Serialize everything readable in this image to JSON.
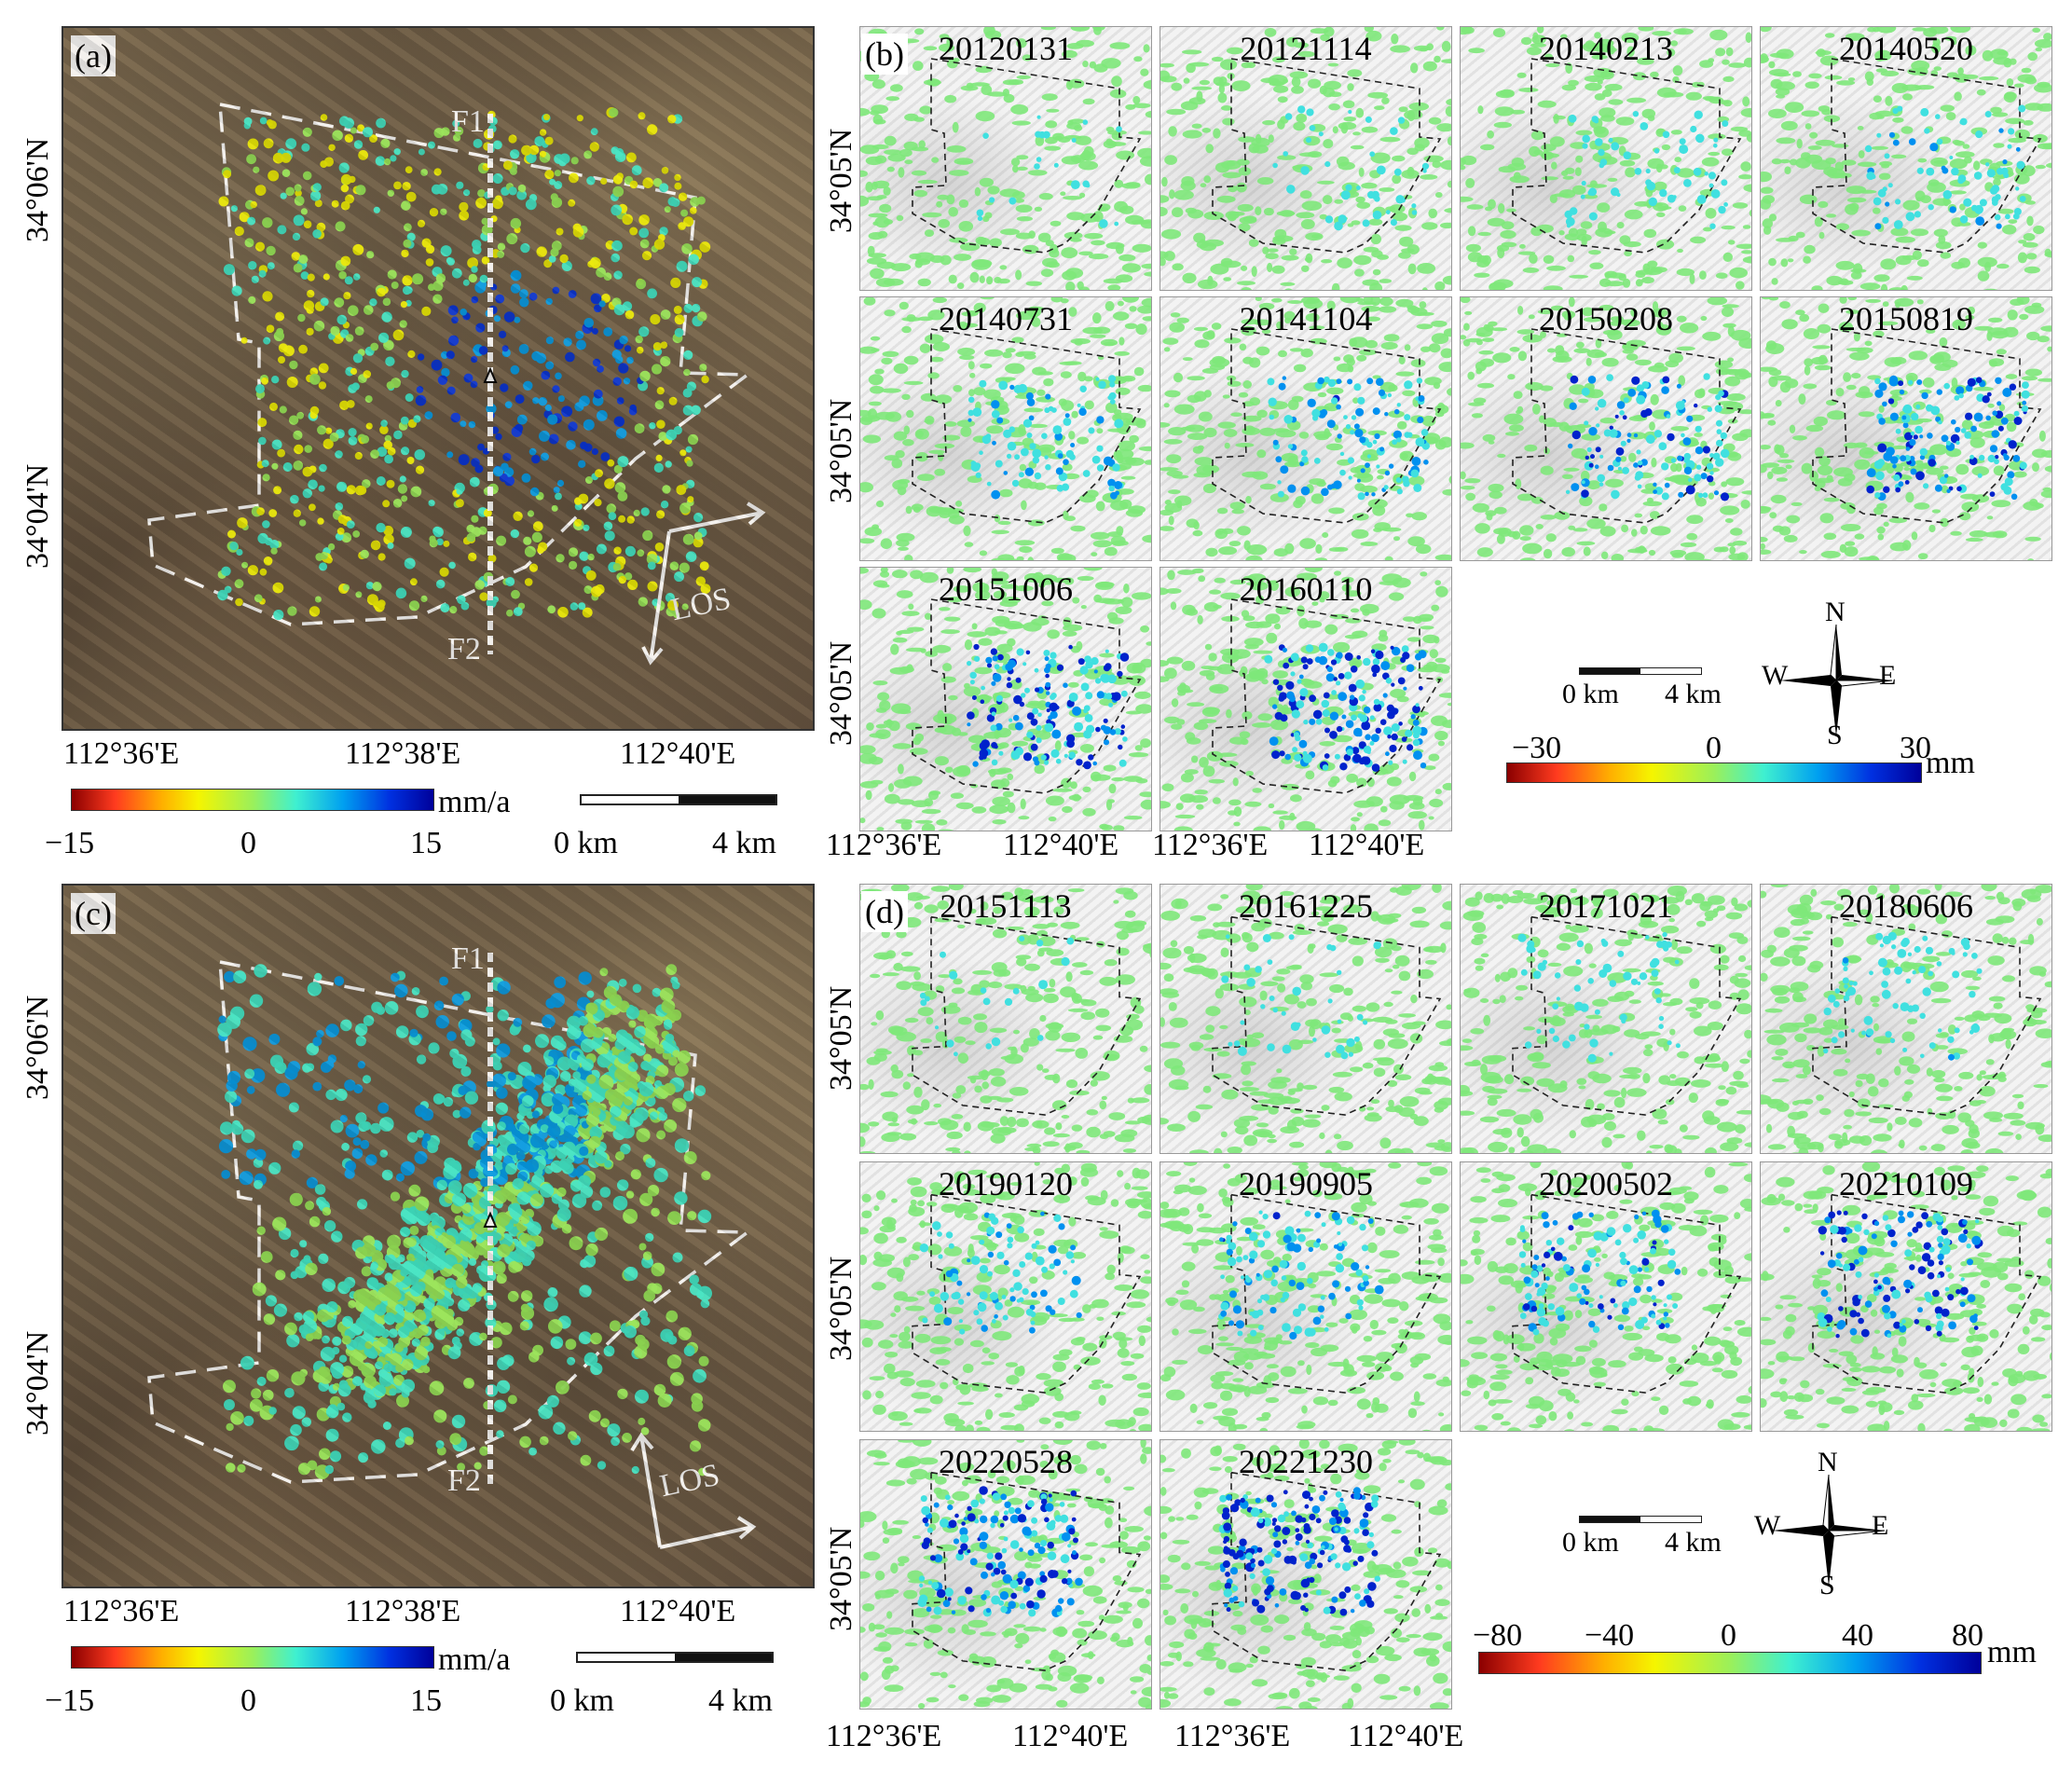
{
  "panels": {
    "a": {
      "label": "(a)",
      "profile_top": "F1",
      "profile_bottom": "F2",
      "los": "LOS",
      "lat_ticks": [
        "34°06'N",
        "34°04'N"
      ],
      "lon_ticks": [
        "112°36'E",
        "112°38'E",
        "112°40'E"
      ],
      "colorbar": {
        "unit": "mm/a",
        "ticks": [
          "−15",
          "0",
          "15"
        ]
      },
      "scale": {
        "left": "0 km",
        "right": "4 km"
      }
    },
    "b": {
      "label": "(b)",
      "dates": [
        "20120131",
        "20121114",
        "20140213",
        "20140520",
        "20140731",
        "20141104",
        "20150208",
        "20150819",
        "20151006",
        "20160110"
      ],
      "lat_tick": "34°05'N",
      "lon_ticks": [
        "112°36'E",
        "112°40'E"
      ],
      "colorbar": {
        "unit": "mm",
        "ticks": [
          "−30",
          "0",
          "30"
        ]
      },
      "scale": {
        "left": "0 km",
        "right": "4 km"
      },
      "compass": {
        "n": "N",
        "s": "S",
        "e": "E",
        "w": "W"
      }
    },
    "c": {
      "label": "(c)",
      "profile_top": "F1",
      "profile_bottom": "F2",
      "los": "LOS",
      "lat_ticks": [
        "34°06'N",
        "34°04'N"
      ],
      "lon_ticks": [
        "112°36'E",
        "112°38'E",
        "112°40'E"
      ],
      "colorbar": {
        "unit": "mm/a",
        "ticks": [
          "−15",
          "0",
          "15"
        ]
      },
      "scale": {
        "left": "0 km",
        "right": "4 km"
      }
    },
    "d": {
      "label": "(d)",
      "dates": [
        "20151113",
        "20161225",
        "20171021",
        "20180606",
        "20190120",
        "20190905",
        "20200502",
        "20210109",
        "20220528",
        "20221230"
      ],
      "lat_tick": "34°05'N",
      "lon_ticks": [
        "112°36'E",
        "112°40'E"
      ],
      "colorbar": {
        "unit": "mm",
        "ticks": [
          "−80",
          "−40",
          "0",
          "40",
          "80"
        ]
      },
      "scale": {
        "left": "0 km",
        "right": "4 km"
      },
      "compass": {
        "n": "N",
        "s": "S",
        "e": "E",
        "w": "W"
      }
    }
  },
  "colors": {
    "velocity_ramp": [
      "#8b0000",
      "#ff3b1f",
      "#ffb000",
      "#f5f500",
      "#9bf05a",
      "#3ff0d0",
      "#00a0f0",
      "#0030e0",
      "#00009a"
    ],
    "background_point": "#7ee87a"
  }
}
